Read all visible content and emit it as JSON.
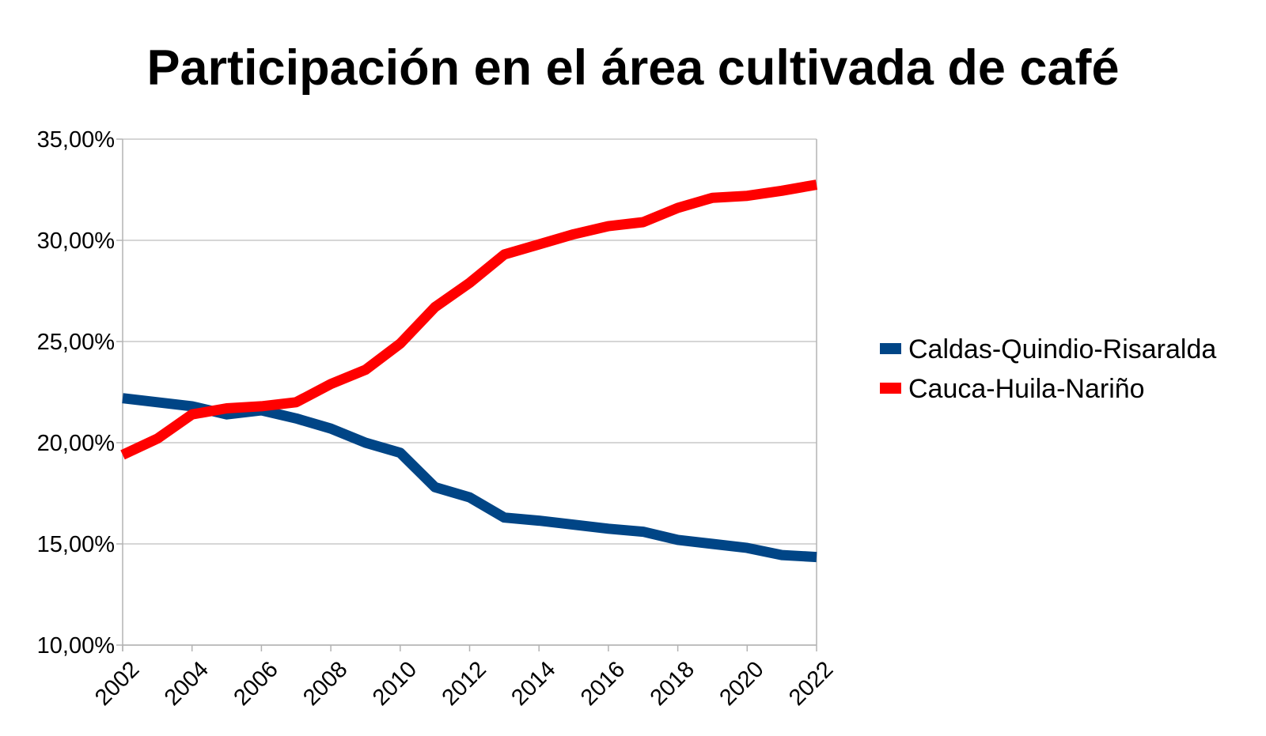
{
  "chart_data": {
    "type": "line",
    "title": "Participación en el área cultivada de café",
    "xlabel": "",
    "ylabel": "",
    "x": [
      2002,
      2003,
      2004,
      2005,
      2006,
      2007,
      2008,
      2009,
      2010,
      2011,
      2012,
      2013,
      2014,
      2015,
      2016,
      2017,
      2018,
      2019,
      2020,
      2021,
      2022
    ],
    "x_tick_labels": [
      "2002",
      "2004",
      "2006",
      "2008",
      "2010",
      "2012",
      "2014",
      "2016",
      "2018",
      "2020",
      "2022"
    ],
    "y_tick_labels": [
      "10,00%",
      "15,00%",
      "20,00%",
      "25,00%",
      "30,00%",
      "35,00%"
    ],
    "ylim": [
      10,
      35
    ],
    "y_unit": "%",
    "grid": "horizontal",
    "legend_position": "right",
    "series": [
      {
        "name": "Caldas-Quindio-Risaralda",
        "color": "#004586",
        "values": [
          22.2,
          22.0,
          21.8,
          21.4,
          21.6,
          21.2,
          20.7,
          20.0,
          19.5,
          17.8,
          17.3,
          16.3,
          16.15,
          15.95,
          15.75,
          15.6,
          15.2,
          15.0,
          14.8,
          14.45,
          14.35
        ]
      },
      {
        "name": "Cauca-Huila-Nariño",
        "color": "#ff0000",
        "values": [
          19.4,
          20.2,
          21.4,
          21.7,
          21.8,
          22.0,
          22.9,
          23.6,
          24.9,
          26.7,
          27.9,
          29.3,
          29.8,
          30.3,
          30.7,
          30.9,
          31.6,
          32.1,
          32.2,
          32.45,
          32.75
        ]
      }
    ]
  }
}
